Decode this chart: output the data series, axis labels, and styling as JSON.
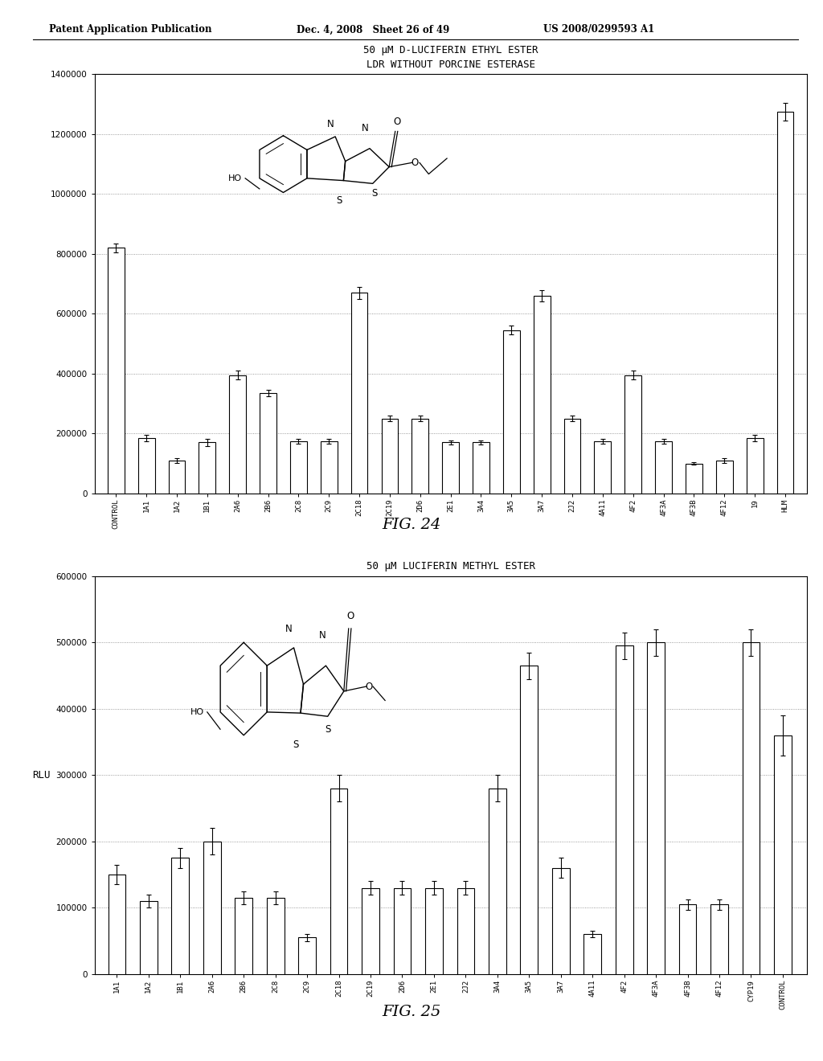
{
  "fig24": {
    "title_line1": "50 μM D-LUCIFERIN ETHYL ESTER",
    "title_line2": "LDR WITHOUT PORCINE ESTERASE",
    "categories": [
      "CONTROL",
      "1A1",
      "1A2",
      "1B1",
      "2A6",
      "2B6",
      "2C8",
      "2C9",
      "2C18",
      "2C19",
      "2D6",
      "2E1",
      "3A4",
      "3A5",
      "3A7",
      "2J2",
      "4A11",
      "4F2",
      "4F3A",
      "4F3B",
      "4F12",
      "19",
      "HLM"
    ],
    "values": [
      820000,
      185000,
      110000,
      170000,
      395000,
      335000,
      175000,
      175000,
      670000,
      250000,
      250000,
      170000,
      170000,
      545000,
      660000,
      250000,
      175000,
      395000,
      175000,
      100000,
      110000,
      185000,
      1275000
    ],
    "errors": [
      15000,
      10000,
      8000,
      12000,
      15000,
      10000,
      8000,
      8000,
      20000,
      10000,
      10000,
      8000,
      8000,
      15000,
      20000,
      10000,
      8000,
      15000,
      8000,
      5000,
      8000,
      10000,
      30000
    ],
    "ylim": [
      0,
      1400000
    ],
    "yticks": [
      0,
      200000,
      400000,
      600000,
      800000,
      1000000,
      1200000,
      1400000
    ]
  },
  "fig25": {
    "title": "50 μM LUCIFERIN METHYL ESTER",
    "categories": [
      "1A1",
      "1A2",
      "1B1",
      "2A6",
      "2B6",
      "2C8",
      "2C9",
      "2C18",
      "2C19",
      "2D6",
      "2E1",
      "2J2",
      "3A4",
      "3A5",
      "3A7",
      "4A11",
      "4F2",
      "4F3A",
      "4F3B",
      "4F12",
      "CYP19",
      "CONTROL"
    ],
    "values": [
      150000,
      110000,
      175000,
      200000,
      115000,
      115000,
      55000,
      280000,
      130000,
      130000,
      130000,
      130000,
      280000,
      465000,
      160000,
      60000,
      495000,
      500000,
      105000,
      105000,
      500000,
      360000
    ],
    "errors": [
      15000,
      10000,
      15000,
      20000,
      10000,
      10000,
      5000,
      20000,
      10000,
      10000,
      10000,
      10000,
      20000,
      20000,
      15000,
      5000,
      20000,
      20000,
      8000,
      8000,
      20000,
      30000
    ],
    "ylim": [
      0,
      600000
    ],
    "yticks": [
      0,
      100000,
      200000,
      300000,
      400000,
      500000,
      600000
    ],
    "ylabel": "RLU"
  },
  "header_left": "Patent Application Publication",
  "header_mid": "Dec. 4, 2008   Sheet 26 of 49",
  "header_right": "US 2008/0299593 A1",
  "fig24_caption": "FIG. 24",
  "fig25_caption": "FIG. 25"
}
